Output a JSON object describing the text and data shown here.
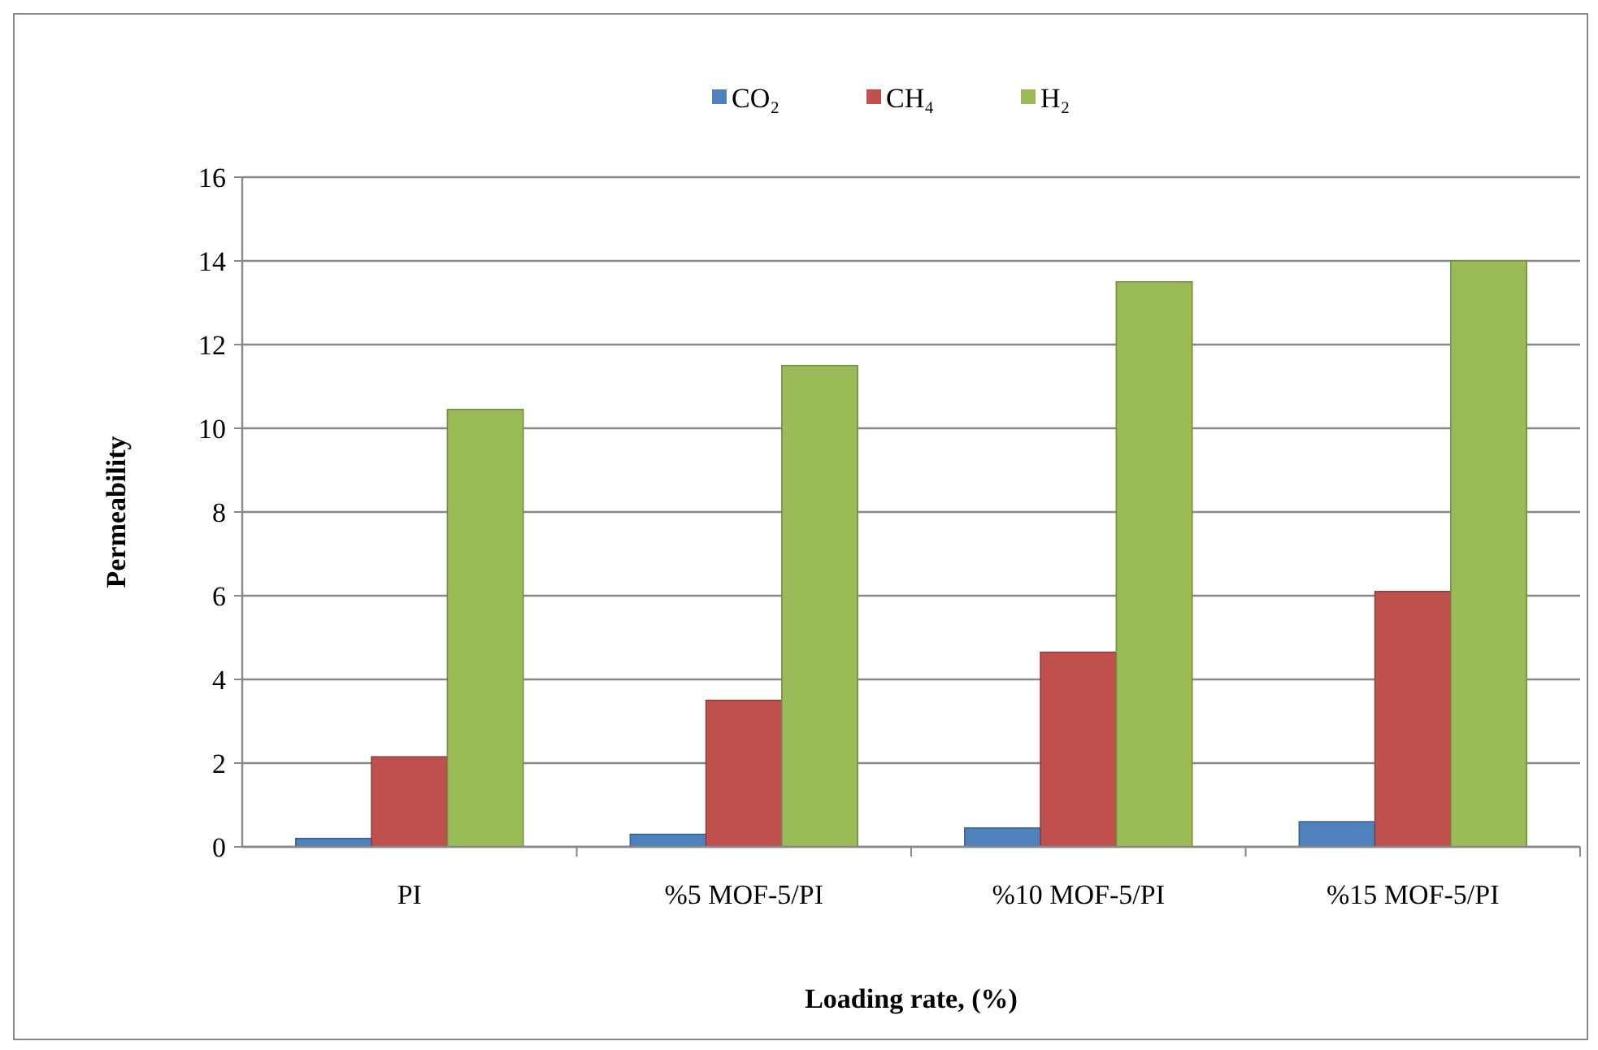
{
  "chart_data": {
    "type": "bar",
    "xlabel": "Loading rate, (%)",
    "ylabel": "Permeability",
    "categories": [
      "PI",
      "%5 MOF-5/PI",
      "%10 MOF-5/PI",
      "%15 MOF-5/PI"
    ],
    "series": [
      {
        "name": "CO₂",
        "color": "#4f81bd",
        "values": [
          0.2,
          0.3,
          0.45,
          0.6
        ]
      },
      {
        "name": "CH₄",
        "color": "#c0504d",
        "values": [
          2.15,
          3.5,
          4.65,
          6.1
        ]
      },
      {
        "name": "H₂",
        "color": "#9bbb59",
        "values": [
          10.45,
          11.5,
          13.5,
          14.0
        ]
      }
    ],
    "ylim": [
      0,
      16
    ],
    "yticks": [
      0,
      2,
      4,
      6,
      8,
      10,
      12,
      14,
      16
    ],
    "grid": "y",
    "legend": "top"
  }
}
